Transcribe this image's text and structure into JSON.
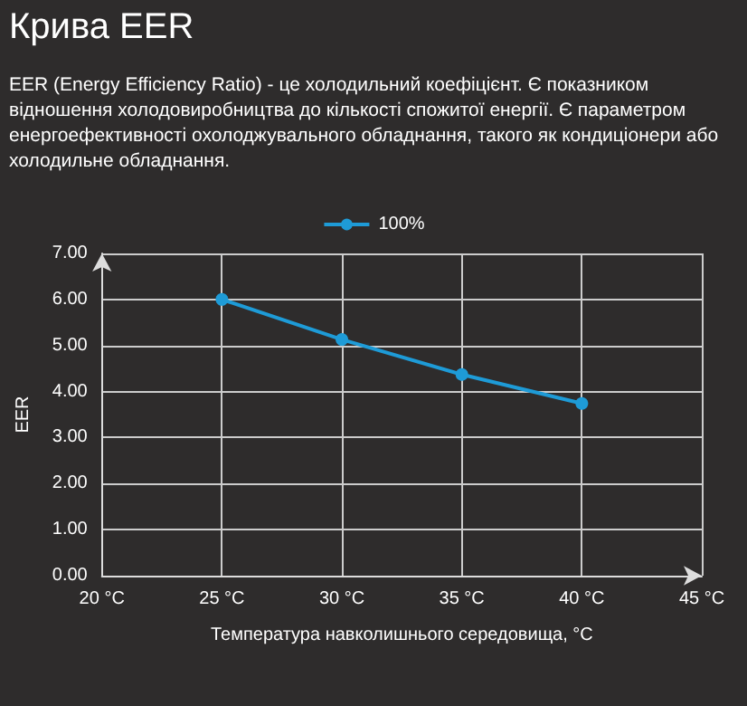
{
  "chart_data": {
    "type": "line",
    "title": "Крива EER",
    "subtitle": "EER (Energy Efficiency Ratio) - це холодильний коефіцієнт. Є показником відношення холодовиробництва до кількості спожитої енергії. Є параметром енергоефективності охолоджувального обладнання, такого як кондиціонери або холодильне обладнання.",
    "xlabel": "Температура навколишнього середовища, °C",
    "ylabel": "EER",
    "series": [
      {
        "name": "100%",
        "color": "#1e9bd7",
        "x": [
          25,
          30,
          35,
          40
        ],
        "values": [
          6.0,
          5.13,
          4.37,
          3.74
        ]
      }
    ],
    "xlim": [
      20,
      45
    ],
    "xticks": [
      {
        "value": 20,
        "label": "20 °C"
      },
      {
        "value": 25,
        "label": "25 °C"
      },
      {
        "value": 30,
        "label": "30 °C"
      },
      {
        "value": 35,
        "label": "35 °C"
      },
      {
        "value": 40,
        "label": "40 °C"
      },
      {
        "value": 45,
        "label": "45 °C"
      }
    ],
    "ylim": [
      0,
      7
    ],
    "yticks": [
      {
        "value": 0,
        "label": "0.00"
      },
      {
        "value": 1,
        "label": "1.00"
      },
      {
        "value": 2,
        "label": "2.00"
      },
      {
        "value": 3,
        "label": "3.00"
      },
      {
        "value": 4,
        "label": "4.00"
      },
      {
        "value": 5,
        "label": "5.00"
      },
      {
        "value": 6,
        "label": "6.00"
      },
      {
        "value": 7,
        "label": "7.00"
      }
    ],
    "grid": true,
    "legend": "top",
    "marker": "circle",
    "line_style": "solid"
  }
}
